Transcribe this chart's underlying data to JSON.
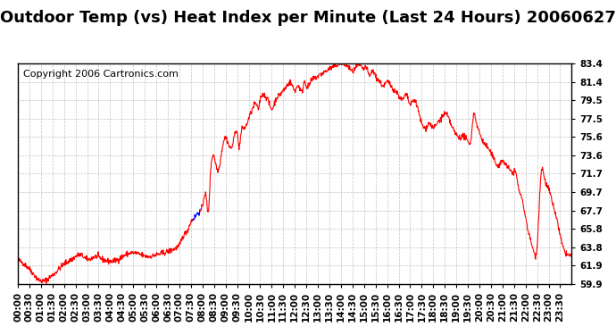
{
  "title": "Outdoor Temp (vs) Heat Index per Minute (Last 24 Hours) 20060627",
  "copyright": "Copyright 2006 Cartronics.com",
  "yticks": [
    59.9,
    61.9,
    63.8,
    65.8,
    67.7,
    69.7,
    71.7,
    73.6,
    75.6,
    77.5,
    79.5,
    81.4,
    83.4
  ],
  "ymin": 59.9,
  "ymax": 83.4,
  "line_color_red": "#FF0000",
  "line_color_blue": "#0000FF",
  "bg_color": "#FFFFFF",
  "grid_color": "#AAAAAA",
  "title_fontsize": 13,
  "copyright_fontsize": 8,
  "tick_fontsize": 7.5
}
